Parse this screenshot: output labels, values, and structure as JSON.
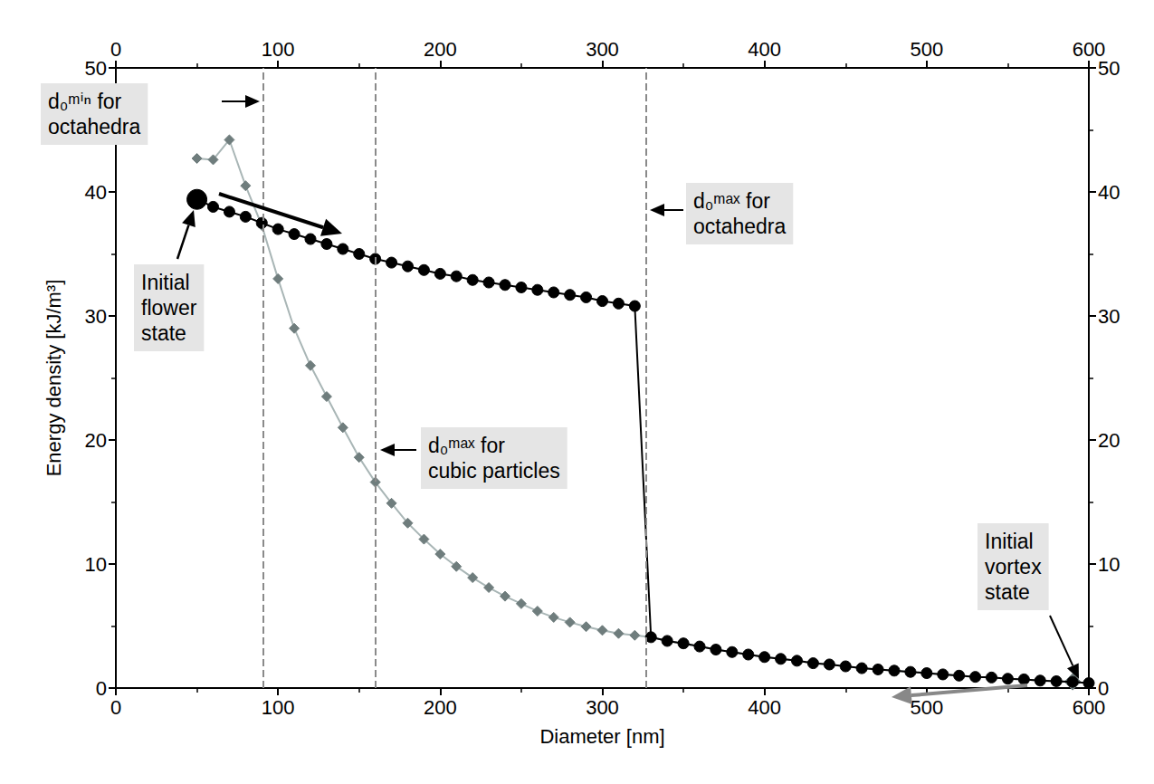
{
  "chart_data": {
    "type": "line",
    "x_label": "Diameter [nm]",
    "y_label": "Energy density [kJ/m³]",
    "xlim": [
      0,
      600
    ],
    "ylim": [
      0,
      50
    ],
    "xticks": [
      0,
      100,
      200,
      300,
      400,
      500,
      600
    ],
    "yticks": [
      0,
      10,
      20,
      30,
      40,
      50
    ],
    "grid": false,
    "series": [
      {
        "color": "#6f7d7d",
        "marker": "diamond",
        "line_style": "solid",
        "x": [
          50,
          60,
          70,
          80,
          90,
          100,
          110,
          120,
          130,
          140,
          150,
          160,
          170,
          180,
          190,
          200,
          210,
          220,
          230,
          240,
          250,
          260,
          270,
          280,
          290,
          300,
          310,
          320,
          330,
          340,
          350,
          360,
          370,
          380,
          390,
          400,
          410,
          420,
          430,
          440,
          450,
          460,
          470,
          480,
          490,
          500,
          510,
          520,
          530,
          540,
          550,
          560,
          570,
          580,
          590
        ],
        "values": [
          42.7,
          42.6,
          44.2,
          40.5,
          37.3,
          33.0,
          29.0,
          26.0,
          23.5,
          21.0,
          18.6,
          16.6,
          14.9,
          13.3,
          12.0,
          10.8,
          9.8,
          8.9,
          8.1,
          7.4,
          6.8,
          6.2,
          5.7,
          5.3,
          4.95,
          4.65,
          4.4,
          4.25,
          4.1,
          3.8,
          3.6,
          3.35,
          3.1,
          2.9,
          2.7,
          2.5,
          2.35,
          2.2,
          2.0,
          1.9,
          1.75,
          1.6,
          1.5,
          1.4,
          1.3,
          1.2,
          1.1,
          1.0,
          0.9,
          0.85,
          0.75,
          0.7,
          0.6,
          0.55,
          0.5
        ]
      },
      {
        "color": "#000000",
        "marker": "circle",
        "line_style": "solid",
        "x": [
          50,
          60,
          70,
          80,
          90,
          100,
          110,
          120,
          130,
          140,
          150,
          160,
          170,
          180,
          190,
          200,
          210,
          220,
          230,
          240,
          250,
          260,
          270,
          280,
          290,
          300,
          310,
          320,
          330,
          340,
          350,
          360,
          370,
          380,
          390,
          400,
          410,
          420,
          430,
          440,
          450,
          460,
          470,
          480,
          490,
          500,
          510,
          520,
          530,
          540,
          550,
          560,
          570,
          580,
          590,
          600
        ],
        "values": [
          39.4,
          38.8,
          38.4,
          38.0,
          37.5,
          37.0,
          36.6,
          36.2,
          35.8,
          35.4,
          35.0,
          34.6,
          34.3,
          34.0,
          33.7,
          33.4,
          33.2,
          32.9,
          32.7,
          32.5,
          32.3,
          32.1,
          31.9,
          31.7,
          31.5,
          31.2,
          31.0,
          30.8,
          4.1,
          3.8,
          3.6,
          3.35,
          3.1,
          2.9,
          2.7,
          2.5,
          2.35,
          2.2,
          2.0,
          1.9,
          1.75,
          1.6,
          1.5,
          1.4,
          1.3,
          1.2,
          1.1,
          1.0,
          0.9,
          0.85,
          0.75,
          0.7,
          0.6,
          0.55,
          0.5,
          0.4
        ]
      }
    ],
    "reference_lines": {
      "x": [
        91,
        160,
        327
      ],
      "line_style": "dashed"
    },
    "annotations": [
      {
        "lines": [
          "d₀ᵐⁱⁿ for",
          "octahedra"
        ]
      },
      {
        "lines": [
          "Initial",
          "flower",
          "state"
        ]
      },
      {
        "lines": [
          "d₀ᵐᵃˣ for",
          "cubic particles"
        ]
      },
      {
        "lines": [
          "d₀ᵐᵃˣ for",
          "octahedra"
        ]
      },
      {
        "lines": [
          "Initial",
          "vortex",
          "state"
        ]
      }
    ]
  }
}
